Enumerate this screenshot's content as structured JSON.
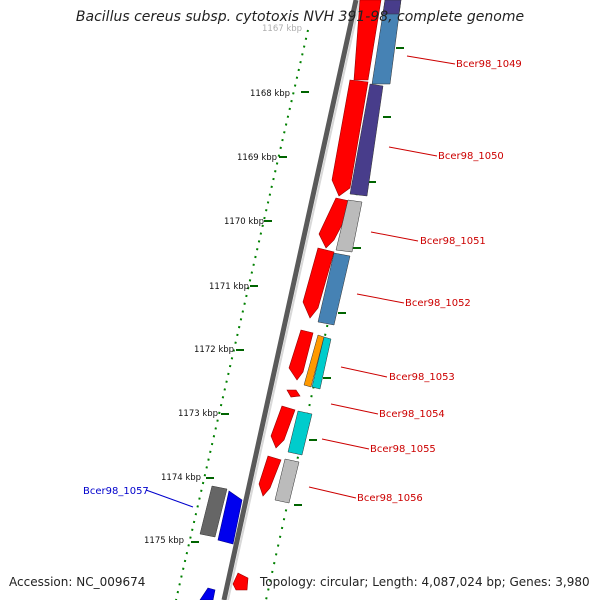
{
  "title": "Bacillus cereus subsp. cytotoxis NVH 391-98, complete genome",
  "accession": "Accession: NC_009674",
  "topology": "Topology: circular; Length: 4,087,024 bp; Genes: 3,980",
  "kbp_labels": [
    {
      "text": "1167 kbp",
      "faded": true
    },
    {
      "text": "1168 kbp"
    },
    {
      "text": "1169 kbp"
    },
    {
      "text": "1170 kbp"
    },
    {
      "text": "1171 kbp"
    },
    {
      "text": "1172 kbp"
    },
    {
      "text": "1173 kbp"
    },
    {
      "text": "1174 kbp"
    },
    {
      "text": "1175 kbp"
    }
  ],
  "gene_labels": [
    {
      "text": "Bcer98_1049",
      "strand": "forward"
    },
    {
      "text": "Bcer98_1050",
      "strand": "forward"
    },
    {
      "text": "Bcer98_1051",
      "strand": "forward"
    },
    {
      "text": "Bcer98_1052",
      "strand": "forward"
    },
    {
      "text": "Bcer98_1053",
      "strand": "forward"
    },
    {
      "text": "Bcer98_1054",
      "strand": "forward"
    },
    {
      "text": "Bcer98_1055",
      "strand": "forward"
    },
    {
      "text": "Bcer98_1056",
      "strand": "forward"
    },
    {
      "text": "Bcer98_1057",
      "strand": "reverse"
    }
  ],
  "colors": {
    "forward_gene": "#ff0000",
    "reverse_gene": "#0000ee",
    "forward_label": "#cc0000",
    "reverse_label": "#0000cc",
    "cog_purple": "#483d8b",
    "cog_blue": "#4682b4",
    "cog_gray": "#bbbbbb",
    "cog_dark_gray": "#666666",
    "cog_orange": "#ff9900",
    "cog_cyan": "#00cccc",
    "tick_green": "#006400",
    "backbone": "#888888"
  }
}
